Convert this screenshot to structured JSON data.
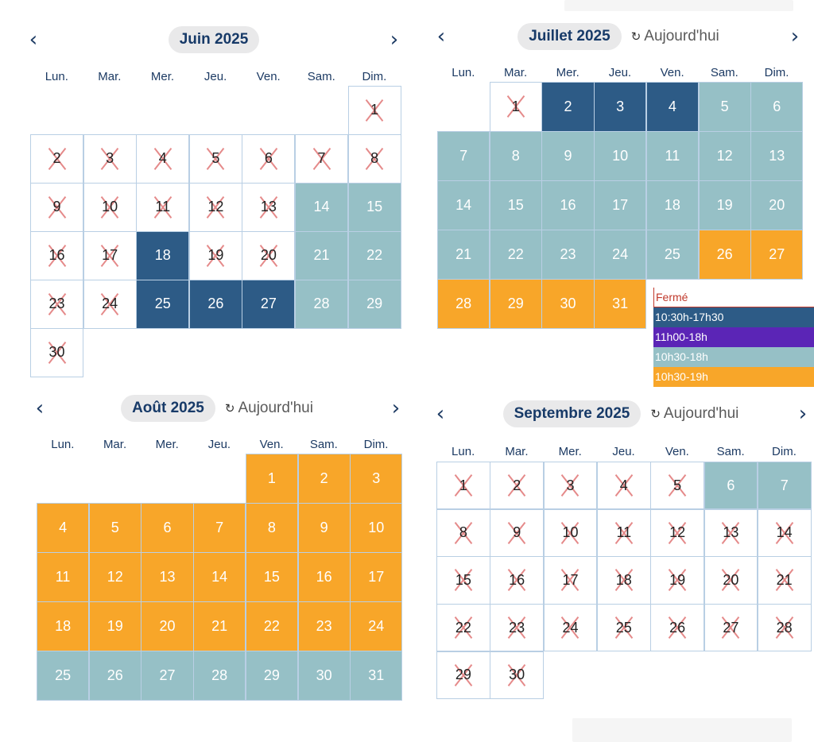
{
  "weekdays": [
    "Lun.",
    "Mar.",
    "Mer.",
    "Jeu.",
    "Ven.",
    "Sam.",
    "Dim."
  ],
  "today_label": "Aujourd'hui",
  "icons": {
    "prev": "chevron-left-icon",
    "next": "chevron-right-icon",
    "today": "refresh-icon"
  },
  "colors": {
    "closed": "#ffffff",
    "navy": "#2d5b86",
    "purple": "#5b25b6",
    "teal": "#96c0c6",
    "orange": "#f8a629"
  },
  "legend": [
    {
      "label": "Fermé",
      "type": "closed"
    },
    {
      "label": "10:30h-17h30",
      "type": "navy"
    },
    {
      "label": "11h00-18h",
      "type": "purple"
    },
    {
      "label": "10h30-18h",
      "type": "teal"
    },
    {
      "label": "10h30-19h",
      "type": "orange"
    }
  ],
  "calendars": [
    {
      "title": "Juin 2025",
      "show_today": false,
      "first_weekday": 6,
      "days": [
        "closed",
        "closed",
        "closed",
        "closed",
        "closed",
        "closed",
        "closed",
        "closed",
        "closed",
        "closed",
        "closed",
        "closed",
        "closed",
        "teal",
        "teal",
        "closed",
        "closed",
        "navy",
        "closed",
        "closed",
        "teal",
        "teal",
        "closed",
        "closed",
        "navy",
        "navy",
        "navy",
        "teal",
        "teal",
        "closed"
      ]
    },
    {
      "title": "Juillet 2025",
      "show_today": true,
      "first_weekday": 1,
      "days": [
        "closed",
        "navy",
        "navy",
        "navy",
        "teal",
        "teal",
        "teal",
        "teal",
        "teal",
        "teal",
        "teal",
        "teal",
        "teal",
        "teal",
        "teal",
        "teal",
        "teal",
        "teal",
        "teal",
        "teal",
        "teal",
        "teal",
        "teal",
        "teal",
        "teal",
        "orange",
        "orange",
        "orange",
        "orange",
        "orange",
        "orange"
      ]
    },
    {
      "title": "Août 2025",
      "show_today": true,
      "first_weekday": 4,
      "days": [
        "orange",
        "orange",
        "orange",
        "orange",
        "orange",
        "orange",
        "orange",
        "orange",
        "orange",
        "orange",
        "orange",
        "orange",
        "orange",
        "orange",
        "orange",
        "orange",
        "orange",
        "orange",
        "orange",
        "orange",
        "orange",
        "orange",
        "orange",
        "orange",
        "teal",
        "teal",
        "teal",
        "teal",
        "teal",
        "teal",
        "teal"
      ]
    },
    {
      "title": "Septembre 2025",
      "show_today": true,
      "first_weekday": 0,
      "days": [
        "closed",
        "closed",
        "closed",
        "closed",
        "closed",
        "teal",
        "teal",
        "closed",
        "closed",
        "closed",
        "closed",
        "closed",
        "closed",
        "closed",
        "closed",
        "closed",
        "closed",
        "closed",
        "closed",
        "closed",
        "closed",
        "closed",
        "closed",
        "closed",
        "closed",
        "closed",
        "closed",
        "closed",
        "closed",
        "closed"
      ]
    }
  ]
}
